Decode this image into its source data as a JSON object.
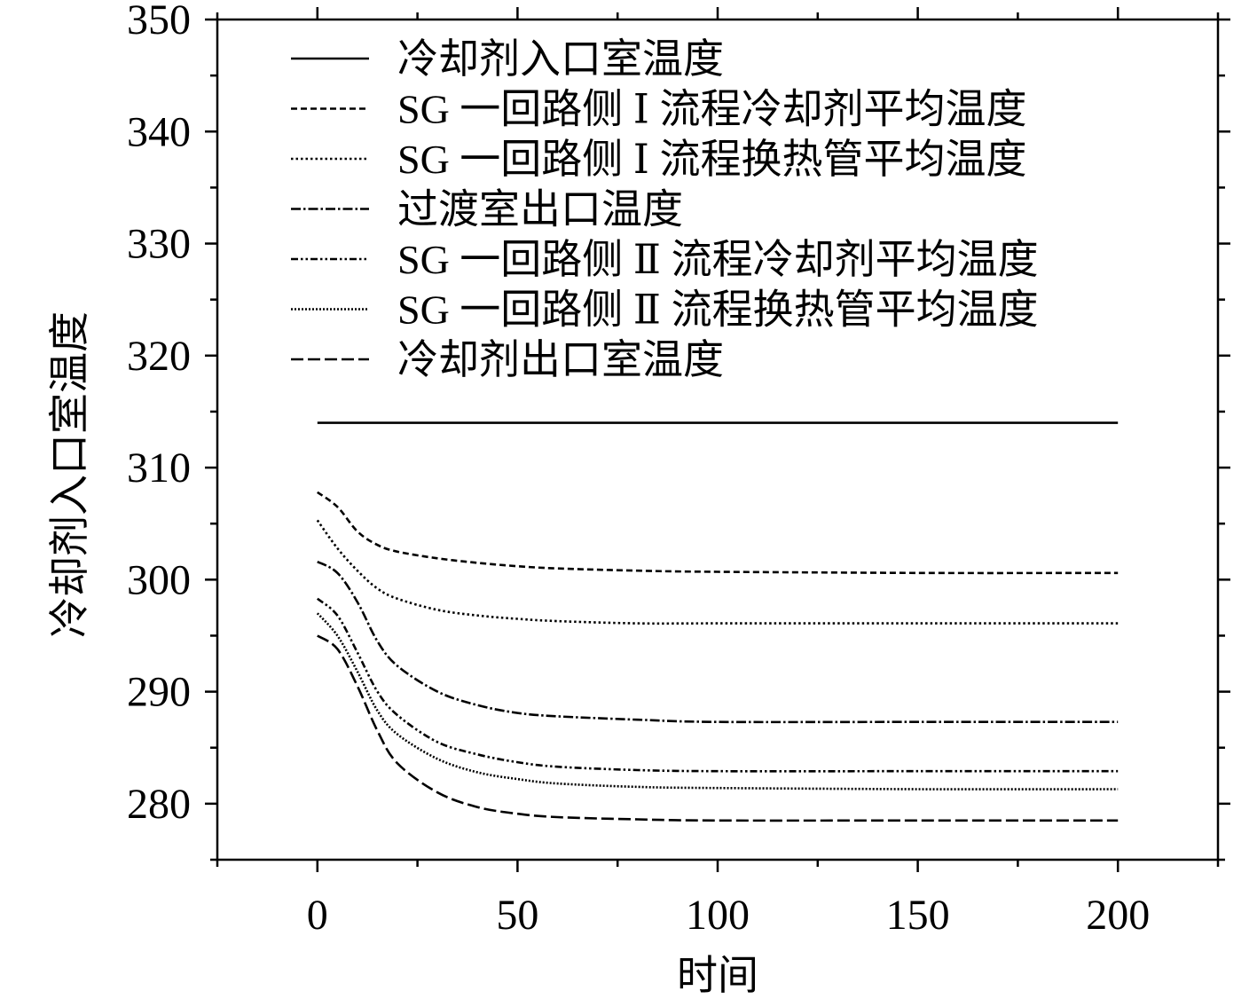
{
  "chart_data": {
    "type": "line",
    "title": "",
    "xlabel": "时间",
    "ylabel": "冷却剂入口室温度",
    "xlim": [
      -25,
      225
    ],
    "ylim": [
      275,
      350
    ],
    "x_ticks": [
      0,
      50,
      100,
      150,
      200
    ],
    "y_ticks": [
      280,
      290,
      300,
      310,
      320,
      330,
      340,
      350
    ],
    "legend_position": "top",
    "grid": false,
    "series": [
      {
        "name": "冷却剂入口室温度",
        "dash": "solid",
        "x": [
          0,
          200
        ],
        "y": [
          314,
          314
        ]
      },
      {
        "name": "SG 一回路侧 Ⅰ 流程冷却剂平均温度",
        "dash": "dash-short",
        "x": [
          0,
          5,
          10,
          15,
          20,
          30,
          40,
          50,
          60,
          80,
          100,
          150,
          200
        ],
        "y": [
          307.8,
          306.5,
          304.3,
          303.1,
          302.5,
          301.9,
          301.5,
          301.2,
          301.0,
          300.8,
          300.7,
          300.6,
          300.6
        ]
      },
      {
        "name": "SG 一回路侧 Ⅰ 流程换热管平均温度",
        "dash": "dot",
        "x": [
          0,
          5,
          10,
          15,
          20,
          30,
          40,
          50,
          60,
          80,
          100,
          150,
          200
        ],
        "y": [
          305.3,
          302.8,
          300.8,
          299.2,
          298.3,
          297.3,
          296.8,
          296.5,
          296.3,
          296.1,
          296.1,
          296.1,
          296.1
        ]
      },
      {
        "name": "过渡室出口温度",
        "dash": "dash-dot",
        "x": [
          0,
          5,
          10,
          15,
          20,
          30,
          40,
          50,
          60,
          80,
          100,
          150,
          200
        ],
        "y": [
          301.6,
          300.6,
          298.0,
          294.5,
          292.3,
          290.0,
          288.8,
          288.1,
          287.8,
          287.5,
          287.3,
          287.3,
          287.3
        ]
      },
      {
        "name": "SG 一回路侧 Ⅱ 流程冷却剂平均温度",
        "dash": "dash-dot-dot",
        "x": [
          0,
          5,
          10,
          15,
          20,
          30,
          40,
          50,
          60,
          80,
          100,
          150,
          200
        ],
        "y": [
          298.3,
          296.8,
          293.5,
          290.0,
          287.9,
          285.5,
          284.4,
          283.7,
          283.3,
          283.0,
          282.9,
          282.9,
          282.9
        ]
      },
      {
        "name": "SG 一回路侧 Ⅱ 流程换热管平均温度",
        "dash": "dot-dense",
        "x": [
          0,
          5,
          10,
          15,
          20,
          30,
          40,
          50,
          60,
          80,
          100,
          150,
          200
        ],
        "y": [
          297.0,
          295.0,
          291.8,
          288.3,
          286.2,
          284.0,
          282.8,
          282.2,
          281.8,
          281.5,
          281.4,
          281.3,
          281.3
        ]
      },
      {
        "name": "冷却剂出口室温度",
        "dash": "dash-long",
        "x": [
          0,
          5,
          10,
          15,
          20,
          30,
          40,
          50,
          60,
          80,
          100,
          150,
          200
        ],
        "y": [
          295.0,
          293.8,
          290.5,
          286.5,
          283.6,
          281.0,
          279.7,
          279.1,
          278.8,
          278.6,
          278.5,
          278.5,
          278.5
        ]
      }
    ]
  }
}
